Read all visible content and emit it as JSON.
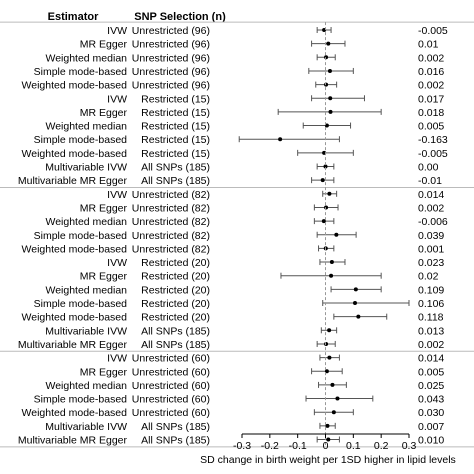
{
  "chart_data": {
    "type": "forest",
    "columns": {
      "estimator": "Estimator",
      "selection": "SNP Selection (n)"
    },
    "xlabel": "SD change in birth weight per 1SD higher in lipid levels",
    "xlim": [
      -0.3,
      0.3
    ],
    "xticks": [
      -0.3,
      -0.2,
      -0.1,
      0,
      0.1,
      0.2,
      0.3
    ],
    "xtick_labels": [
      "-0.3",
      "-0.2",
      "-0.1",
      "0",
      "0.1",
      "0.2",
      "0.3"
    ],
    "reference_line": 0,
    "groups": [
      {
        "rows": [
          {
            "estimator": "IVW",
            "selection": "Unrestricted (96)",
            "estimate": -0.005,
            "lo": -0.03,
            "hi": 0.02,
            "label": "-0.005"
          },
          {
            "estimator": "MR Egger",
            "selection": "Unrestricted (96)",
            "estimate": 0.01,
            "lo": -0.05,
            "hi": 0.07,
            "label": "0.01"
          },
          {
            "estimator": "Weighted median",
            "selection": "Unrestricted (96)",
            "estimate": 0.002,
            "lo": -0.03,
            "hi": 0.035,
            "label": "0.002"
          },
          {
            "estimator": "Simple mode-based",
            "selection": "Unrestricted (96)",
            "estimate": 0.016,
            "lo": -0.06,
            "hi": 0.1,
            "label": "0.016"
          },
          {
            "estimator": "Weighted mode-based",
            "selection": "Unrestricted (96)",
            "estimate": 0.002,
            "lo": -0.035,
            "hi": 0.04,
            "label": "0.002"
          },
          {
            "estimator": "IVW",
            "selection": "Restricted (15)",
            "estimate": 0.017,
            "lo": -0.05,
            "hi": 0.14,
            "label": "0.017"
          },
          {
            "estimator": "MR Egger",
            "selection": "Restricted (15)",
            "estimate": 0.018,
            "lo": -0.17,
            "hi": 0.2,
            "label": "0.018"
          },
          {
            "estimator": "Weighted median",
            "selection": "Restricted (15)",
            "estimate": 0.005,
            "lo": -0.08,
            "hi": 0.09,
            "label": "0.005"
          },
          {
            "estimator": "Simple mode-based",
            "selection": "Restricted (15)",
            "estimate": -0.163,
            "lo": -0.31,
            "hi": 0.05,
            "label": "-0.163"
          },
          {
            "estimator": "Weighted mode-based",
            "selection": "Restricted (15)",
            "estimate": -0.005,
            "lo": -0.1,
            "hi": 0.1,
            "label": "-0.005"
          },
          {
            "estimator": "Multivariable IVW",
            "selection": "All SNPs (185)",
            "estimate": 0.0,
            "lo": -0.03,
            "hi": 0.03,
            "label": "0.00"
          },
          {
            "estimator": "Multivariable MR Egger",
            "selection": "All SNPs (185)",
            "estimate": -0.01,
            "lo": -0.05,
            "hi": 0.03,
            "label": "-0.01"
          }
        ]
      },
      {
        "rows": [
          {
            "estimator": "IVW",
            "selection": "Unrestricted (82)",
            "estimate": 0.014,
            "lo": -0.01,
            "hi": 0.04,
            "label": "0.014"
          },
          {
            "estimator": "MR Egger",
            "selection": "Unrestricted (82)",
            "estimate": 0.002,
            "lo": -0.04,
            "hi": 0.045,
            "label": "0.002"
          },
          {
            "estimator": "Weighted median",
            "selection": "Unrestricted (82)",
            "estimate": -0.006,
            "lo": -0.04,
            "hi": 0.03,
            "label": "-0.006"
          },
          {
            "estimator": "Simple mode-based",
            "selection": "Unrestricted (82)",
            "estimate": 0.039,
            "lo": -0.03,
            "hi": 0.11,
            "label": "0.039"
          },
          {
            "estimator": "Weighted mode-based",
            "selection": "Unrestricted (82)",
            "estimate": 0.001,
            "lo": -0.025,
            "hi": 0.03,
            "label": "0.001"
          },
          {
            "estimator": "IVW",
            "selection": "Restricted (20)",
            "estimate": 0.023,
            "lo": -0.02,
            "hi": 0.07,
            "label": "0.023"
          },
          {
            "estimator": "MR Egger",
            "selection": "Restricted (20)",
            "estimate": 0.02,
            "lo": -0.16,
            "hi": 0.2,
            "label": "0.02"
          },
          {
            "estimator": "Weighted median",
            "selection": "Restricted (20)",
            "estimate": 0.109,
            "lo": 0.02,
            "hi": 0.2,
            "label": "0.109"
          },
          {
            "estimator": "Simple mode-based",
            "selection": "Restricted (20)",
            "estimate": 0.106,
            "lo": -0.01,
            "hi": 0.3,
            "label": "0.106"
          },
          {
            "estimator": "Weighted mode-based",
            "selection": "Restricted (20)",
            "estimate": 0.118,
            "lo": 0.03,
            "hi": 0.22,
            "label": "0.118"
          },
          {
            "estimator": "Multivariable IVW",
            "selection": "All SNPs (185)",
            "estimate": 0.013,
            "lo": -0.015,
            "hi": 0.04,
            "label": "0.013"
          },
          {
            "estimator": "Multivariable MR Egger",
            "selection": "All SNPs (185)",
            "estimate": 0.002,
            "lo": -0.03,
            "hi": 0.035,
            "label": "0.002"
          }
        ]
      },
      {
        "rows": [
          {
            "estimator": "IVW",
            "selection": "Unrestricted (60)",
            "estimate": 0.014,
            "lo": -0.02,
            "hi": 0.05,
            "label": "0.014"
          },
          {
            "estimator": "MR Egger",
            "selection": "Unrestricted (60)",
            "estimate": 0.005,
            "lo": -0.05,
            "hi": 0.06,
            "label": "0.005"
          },
          {
            "estimator": "Weighted median",
            "selection": "Unrestricted (60)",
            "estimate": 0.025,
            "lo": -0.025,
            "hi": 0.075,
            "label": "0.025"
          },
          {
            "estimator": "Simple mode-based",
            "selection": "Unrestricted (60)",
            "estimate": 0.043,
            "lo": -0.07,
            "hi": 0.17,
            "label": "0.043"
          },
          {
            "estimator": "Weighted mode-based",
            "selection": "Unrestricted (60)",
            "estimate": 0.03,
            "lo": -0.04,
            "hi": 0.1,
            "label": "0.030"
          },
          {
            "estimator": "Multivariable IVW",
            "selection": "All SNPs (185)",
            "estimate": 0.007,
            "lo": -0.02,
            "hi": 0.035,
            "label": "0.007"
          },
          {
            "estimator": "Multivariable MR Egger",
            "selection": "All SNPs (185)",
            "estimate": 0.01,
            "lo": -0.03,
            "hi": 0.05,
            "label": "0.010"
          }
        ]
      }
    ]
  }
}
